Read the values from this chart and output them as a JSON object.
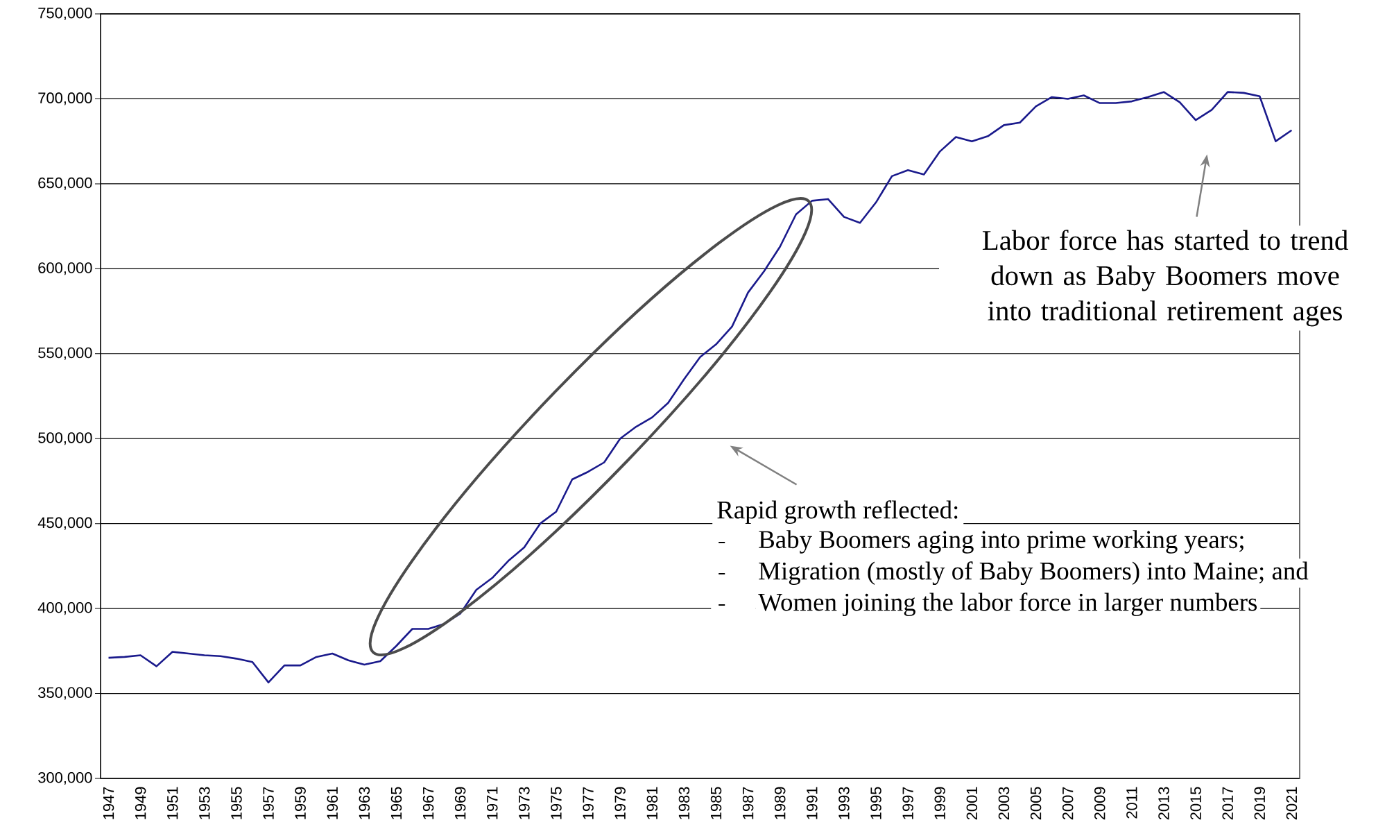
{
  "chart_data": {
    "type": "line",
    "categories": [
      "1947",
      null,
      "1949",
      null,
      "1951",
      null,
      "1953",
      null,
      "1955",
      null,
      "1957",
      null,
      "1959",
      null,
      "1961",
      null,
      "1963",
      null,
      "1965",
      null,
      "1967",
      null,
      "1969",
      null,
      "1971",
      null,
      "1973",
      null,
      "1975",
      null,
      "1977",
      null,
      "1979",
      null,
      "1981",
      null,
      "1983",
      null,
      "1985",
      null,
      "1987",
      null,
      "1989",
      null,
      "1991",
      null,
      "1993",
      null,
      "1995",
      null,
      "1997",
      null,
      "1999",
      null,
      "2001",
      null,
      "2003",
      null,
      "2005",
      null,
      "2007",
      null,
      "2009",
      null,
      "2011",
      null,
      "2013",
      null,
      "2015",
      null,
      "2017",
      null,
      "2019",
      null,
      "2021"
    ],
    "values": [
      371000,
      371500,
      372500,
      366000,
      374500,
      373500,
      372500,
      372000,
      370500,
      368500,
      356500,
      366500,
      366500,
      371500,
      373500,
      369500,
      367000,
      369000,
      378000,
      388000,
      388000,
      391000,
      397000,
      411000,
      418000,
      428000,
      436000,
      450000,
      457000,
      476000,
      480500,
      486000,
      500000,
      507000,
      512500,
      521000,
      535000,
      548000,
      555500,
      566000,
      586000,
      598500,
      613000,
      632000,
      640000,
      641000,
      630500,
      627000,
      639000,
      654500,
      658000,
      655500,
      669000,
      677500,
      675000,
      678000,
      684500,
      686000,
      695500,
      701000,
      700000,
      702000,
      697500,
      697500,
      698500,
      701000,
      704000,
      698000,
      687500,
      693500,
      704000,
      703500,
      701500,
      675000,
      681500
    ],
    "color": "#1a1a8c",
    "ylim": [
      300000,
      750000
    ],
    "yticks": [
      {
        "value": 300000,
        "label": "300,000"
      },
      {
        "value": 350000,
        "label": "350,000"
      },
      {
        "value": 400000,
        "label": "400,000"
      },
      {
        "value": 450000,
        "label": "450,000"
      },
      {
        "value": 500000,
        "label": "500,000"
      },
      {
        "value": 550000,
        "label": "550,000"
      },
      {
        "value": 600000,
        "label": "600,000"
      },
      {
        "value": 650000,
        "label": "650,000"
      },
      {
        "value": 700000,
        "label": "700,000"
      },
      {
        "value": 750000,
        "label": "750,000"
      }
    ],
    "grid": "y",
    "annotations": [
      "Labor force has started to trend down as Baby Boomers move into traditional retirement ages",
      "Rapid growth reflected:",
      "Baby Boomers aging into prime working years;",
      "Migration (mostly of Baby Boomers) into Maine; and",
      "Women joining the labor force in larger numbers"
    ]
  }
}
